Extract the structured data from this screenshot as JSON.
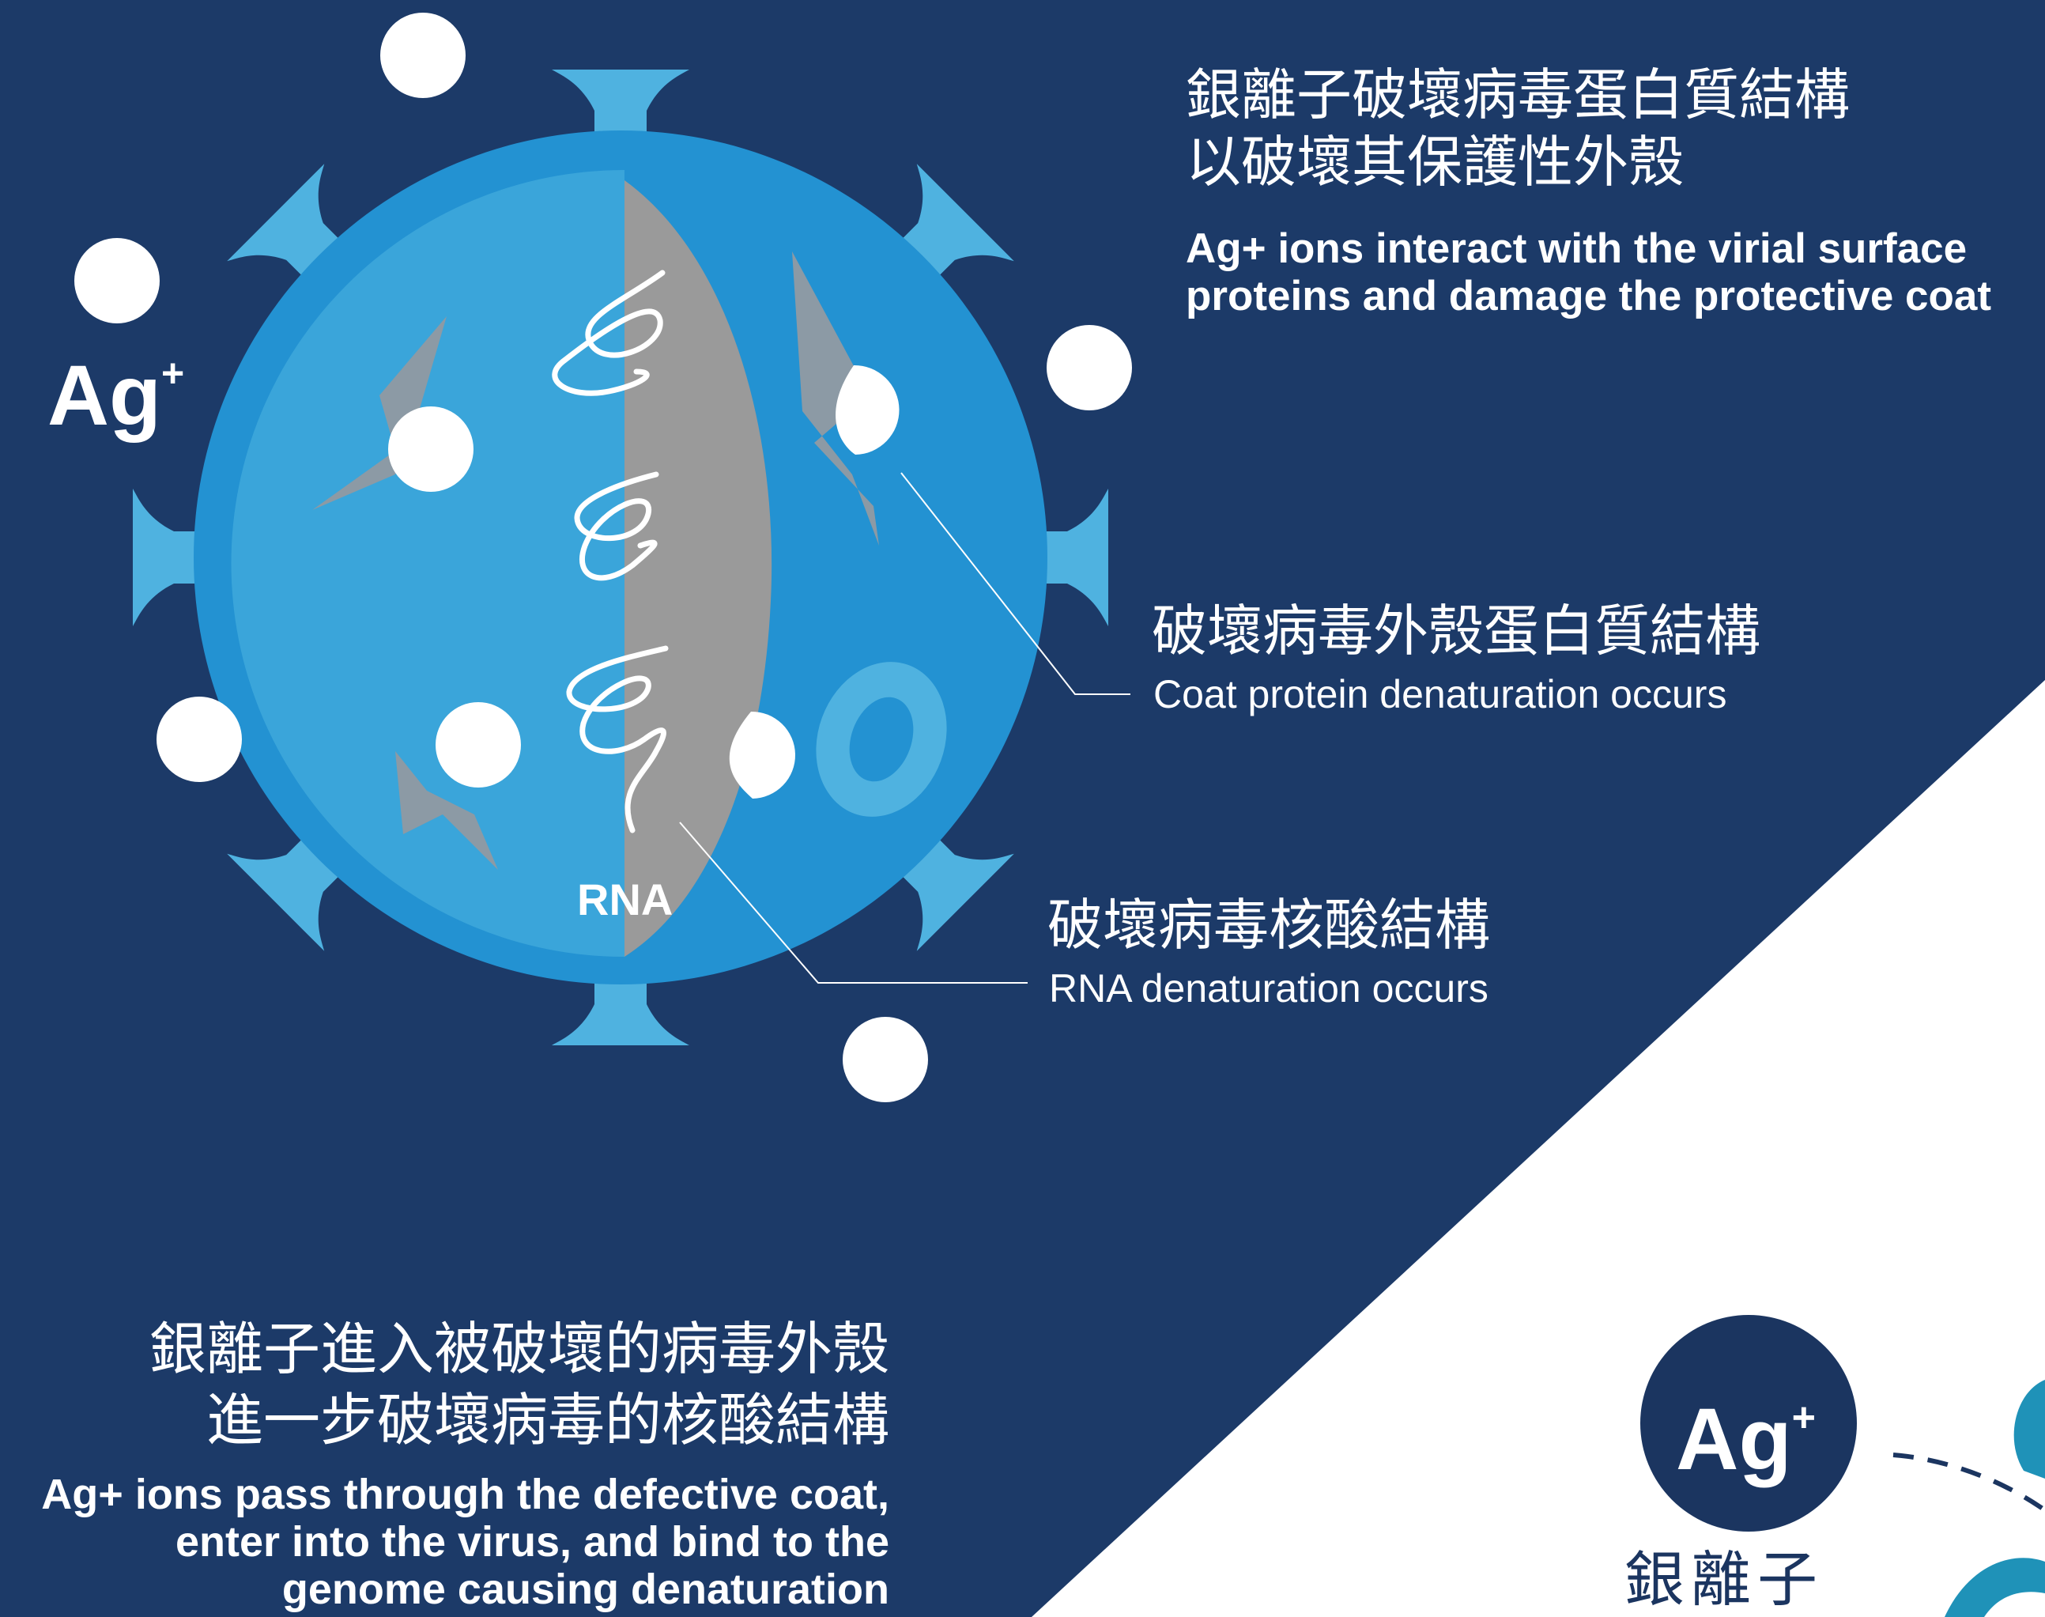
{
  "ion_label": "Ag",
  "ion_sup": "+",
  "rna_label": "RNA",
  "top_right": {
    "cn_line1": "銀離子破壞病毒蛋白質結構",
    "cn_line2": "以破壞其保護性外殼",
    "en_line1": "Ag+ ions interact with the virial surface",
    "en_line2": "proteins and damage the protective coat"
  },
  "coat_callout": {
    "cn": "破壞病毒外殼蛋白質結構",
    "en": "Coat protein denaturation occurs"
  },
  "rna_callout": {
    "cn": "破壞病毒核酸結構",
    "en": "RNA denaturation occurs"
  },
  "bottom_left": {
    "cn_line1": "銀離子進入被破壞的病毒外殼",
    "cn_line2": "進一步破壞病毒的核酸結構",
    "en_line1": "Ag+ ions pass through the defective coat,",
    "en_line2": "enter into the virus, and bind to the",
    "en_line3": "genome causing denaturation"
  },
  "badge": {
    "text": "Ag",
    "sup": "+",
    "cn_label": "銀離子"
  },
  "colors": {
    "background": "#1c3a68",
    "virus_outer": "#2392d2",
    "virus_inner": "#3aa5da",
    "spike": "#4fb2e0",
    "rna_core": "#9a9a9a",
    "ion": "#ffffff",
    "teal_accent": "#1f92b8"
  }
}
